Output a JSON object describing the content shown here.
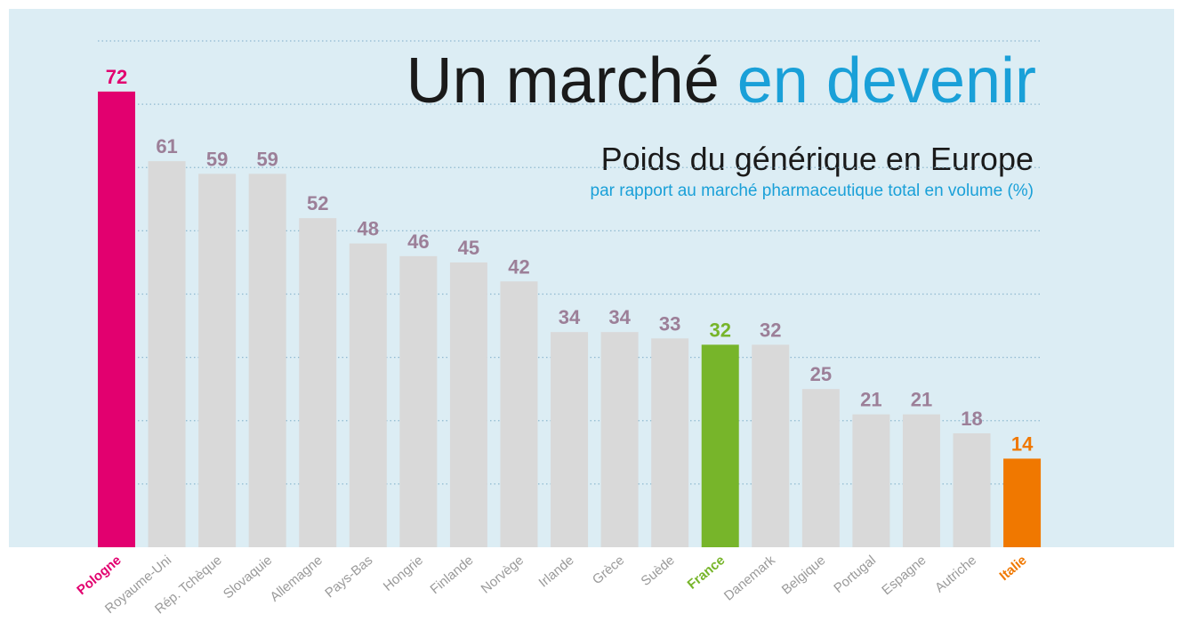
{
  "chart_data": {
    "type": "bar",
    "title": [
      "Un marché",
      "en devenir"
    ],
    "title_colors": [
      "#1a1a1a",
      "#1aa0d8"
    ],
    "subtitle": "Poids du générique en Europe",
    "note": "par rapport au marché pharmaceutique total en volume (%)",
    "categories": [
      "Pologne",
      "Royaume-Uni",
      "Rép. Tchèque",
      "Slovaquie",
      "Allemagne",
      "Pays-Bas",
      "Hongrie",
      "Finlande",
      "Norvège",
      "Irlande",
      "Grèce",
      "Suède",
      "France",
      "Danemark",
      "Belgique",
      "Portugal",
      "Espagne",
      "Autriche",
      "Italie"
    ],
    "values": [
      72,
      61,
      59,
      59,
      52,
      48,
      46,
      45,
      42,
      34,
      34,
      33,
      32,
      32,
      25,
      21,
      21,
      18,
      14
    ],
    "colors": [
      "#e2006f",
      "#d9d9d9",
      "#d9d9d9",
      "#d9d9d9",
      "#d9d9d9",
      "#d9d9d9",
      "#d9d9d9",
      "#d9d9d9",
      "#d9d9d9",
      "#d9d9d9",
      "#d9d9d9",
      "#d9d9d9",
      "#77b52a",
      "#d9d9d9",
      "#d9d9d9",
      "#d9d9d9",
      "#d9d9d9",
      "#d9d9d9",
      "#f07800"
    ],
    "value_label_colors": [
      "#e2006f",
      "#9c7f98",
      "#9c7f98",
      "#9c7f98",
      "#9c7f98",
      "#9c7f98",
      "#9c7f98",
      "#9c7f98",
      "#9c7f98",
      "#9c7f98",
      "#9c7f98",
      "#9c7f98",
      "#77b52a",
      "#9c7f98",
      "#9c7f98",
      "#9c7f98",
      "#9c7f98",
      "#9c7f98",
      "#f07800"
    ],
    "category_label_colors": [
      "#e2006f",
      "#9a9a9a",
      "#9a9a9a",
      "#9a9a9a",
      "#9a9a9a",
      "#9a9a9a",
      "#9a9a9a",
      "#9a9a9a",
      "#9a9a9a",
      "#9a9a9a",
      "#9a9a9a",
      "#9a9a9a",
      "#77b52a",
      "#9a9a9a",
      "#9a9a9a",
      "#9a9a9a",
      "#9a9a9a",
      "#9a9a9a",
      "#f07800"
    ],
    "ylim": [
      0,
      80
    ],
    "yticks": [
      10,
      20,
      30,
      40,
      50,
      60,
      70,
      80
    ],
    "grid": true,
    "tick_labels": false
  }
}
